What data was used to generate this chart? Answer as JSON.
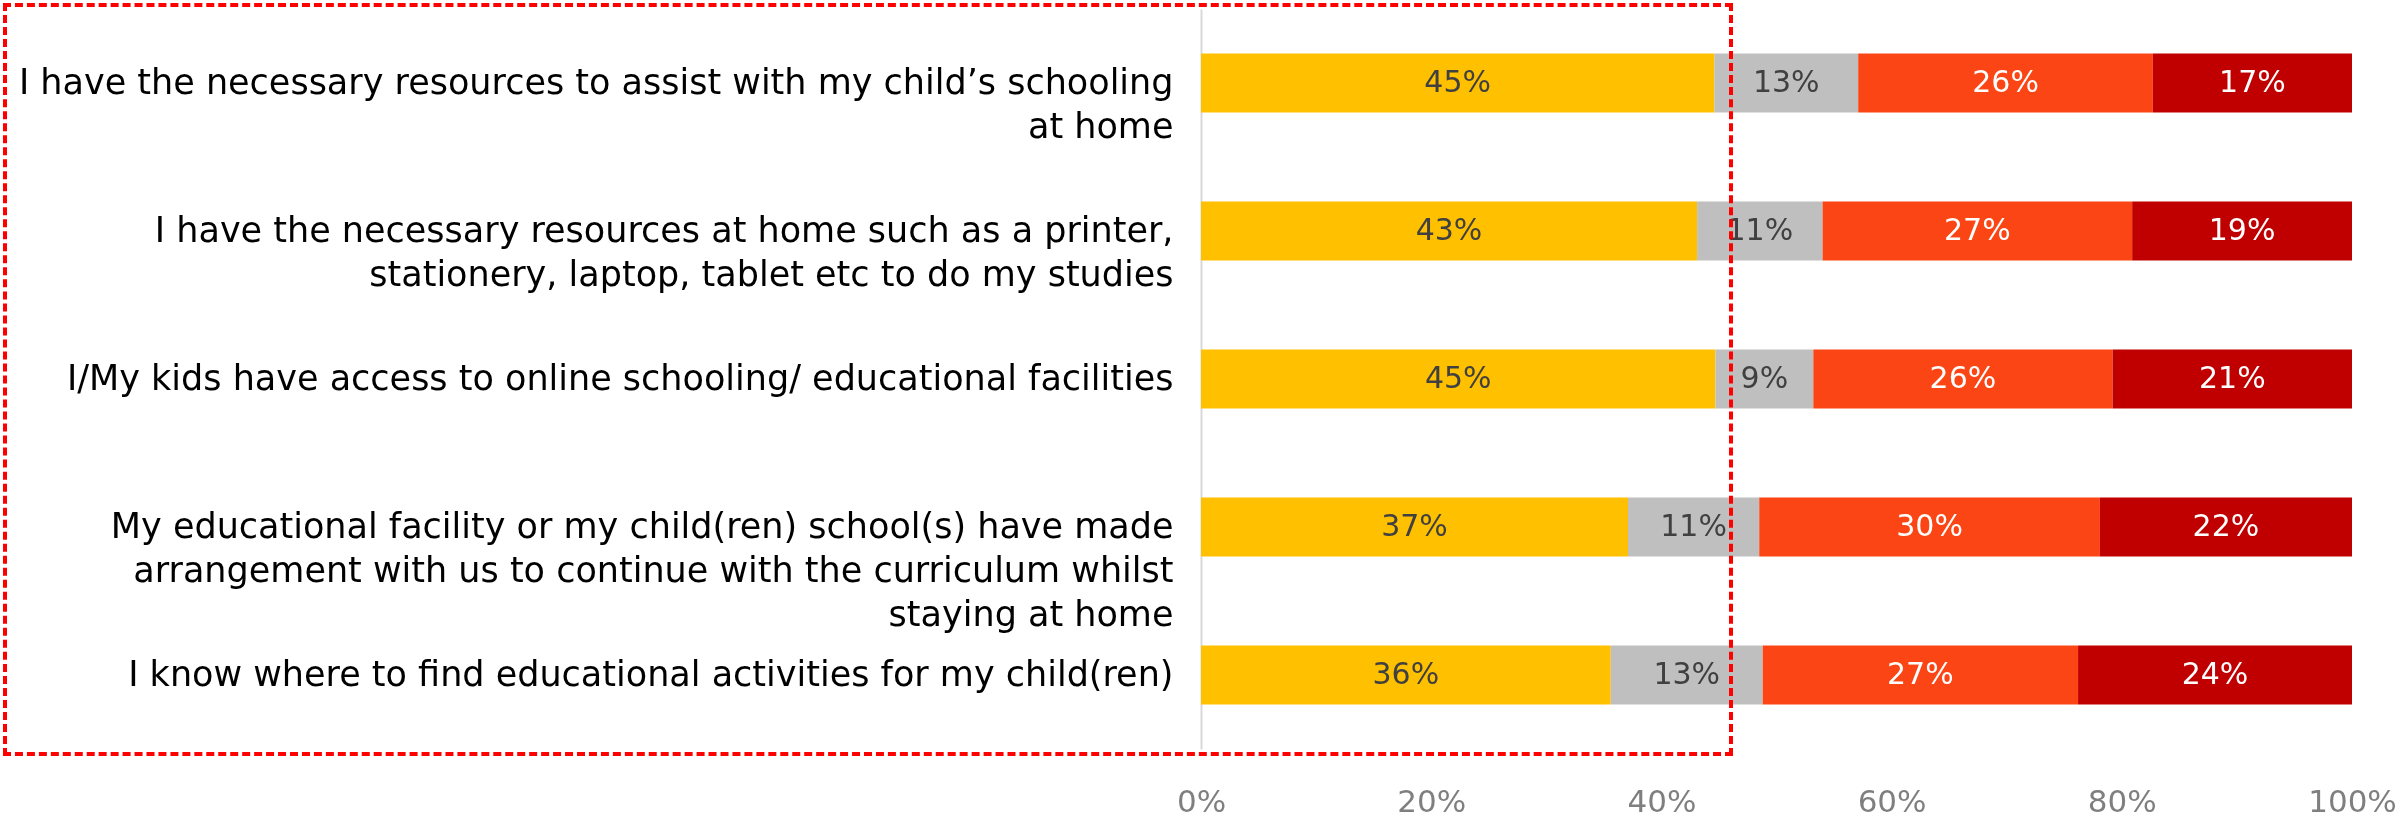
{
  "chart_data": {
    "type": "bar",
    "orientation": "horizontal",
    "stacked": true,
    "categories": [
      "I have the necessary resources to assist with my child’s schooling at home",
      "I have the necessary resources at home such as a printer, stationery, laptop, tablet etc to do my studies",
      "I/My kids have access to online schooling/ educational facilities",
      "My educational facility or my child(ren) school(s) have made arrangement with us to continue with the curriculum whilst staying at home",
      "I know where to find educational activities for my child(ren)"
    ],
    "series": [
      {
        "color": "#ffc000",
        "values": [
          44.6,
          43.1,
          44.7,
          37.1,
          35.6
        ],
        "value_labels": [
          "45%",
          "43%",
          "45%",
          "37%",
          "36%"
        ]
      },
      {
        "color": "#bfbfbf",
        "values": [
          12.5,
          10.9,
          8.5,
          11.4,
          13.2
        ],
        "value_labels": [
          "13%",
          "11%",
          "9%",
          "11%",
          "13%"
        ]
      },
      {
        "color": "#fc4514",
        "values": [
          25.6,
          26.9,
          26.0,
          29.6,
          27.4
        ],
        "value_labels": [
          "26%",
          "27%",
          "26%",
          "30%",
          "27%"
        ]
      },
      {
        "color": "#c00000",
        "values": [
          17.3,
          19.1,
          20.8,
          21.9,
          23.8
        ],
        "value_labels": [
          "17%",
          "19%",
          "21%",
          "22%",
          "24%"
        ]
      }
    ],
    "xlim": [
      0,
      100
    ],
    "xticks": [
      {
        "value": 0,
        "label": "0%"
      },
      {
        "value": 20,
        "label": "20%"
      },
      {
        "value": 40,
        "label": "40%"
      },
      {
        "value": 60,
        "label": "60%"
      },
      {
        "value": 80,
        "label": "80%"
      },
      {
        "value": 100,
        "label": "100%"
      }
    ],
    "grid": false
  }
}
